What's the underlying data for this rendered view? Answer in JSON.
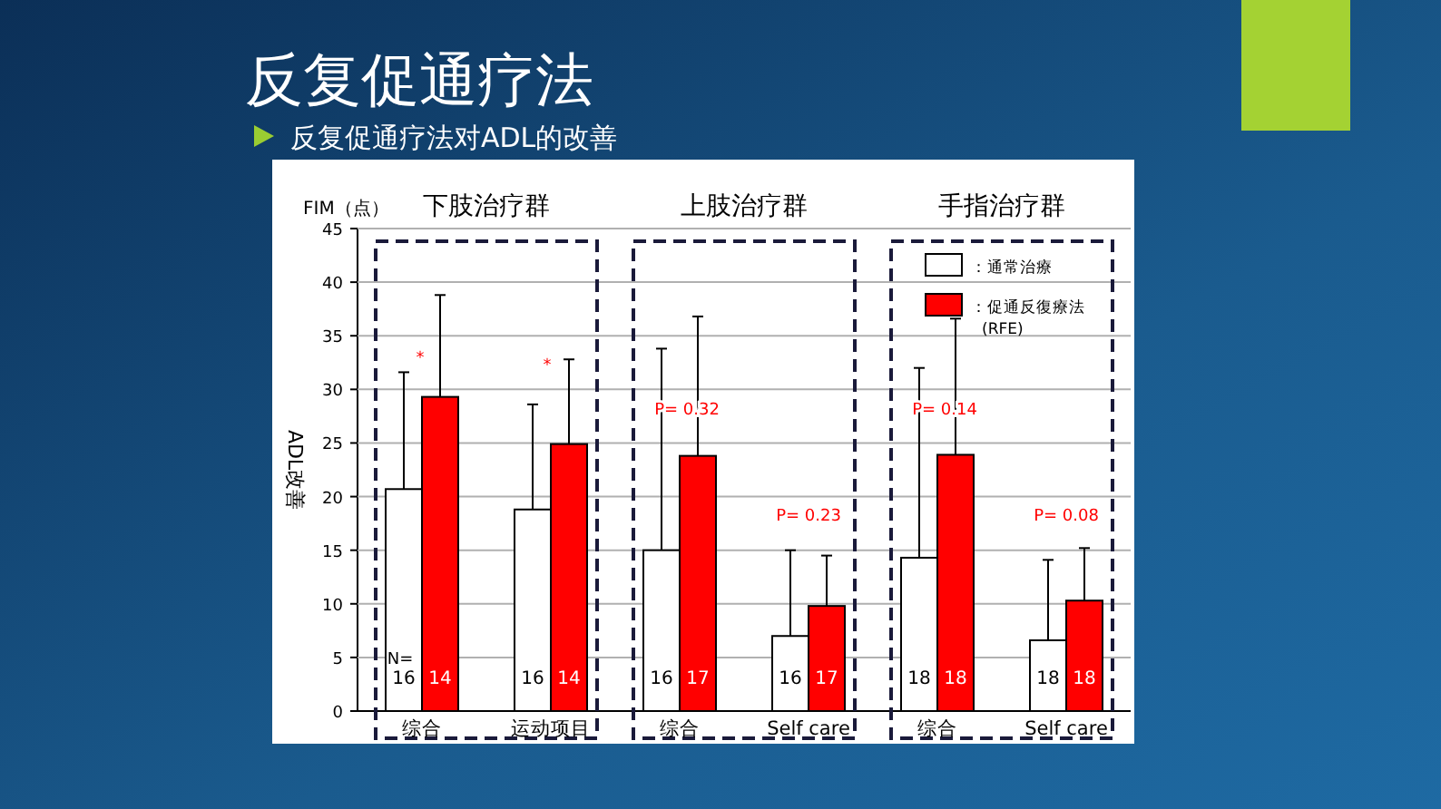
{
  "chart_data": {
    "type": "bar",
    "title": "反复促通疗法",
    "subtitle": "反复促通疗法对ADL的改善",
    "ylabel": "ADL改善",
    "categories": [
      "综合",
      "运动项目",
      "综合",
      "Self care",
      "综合",
      "Self care"
    ],
    "series": [
      {
        "name": "：通常治療",
        "color": "#ffffff",
        "values": [
          20.7,
          18.8,
          15.0,
          7.0,
          14.3,
          6.6
        ],
        "errors": [
          [
            20.7,
            31.6
          ],
          [
            18.8,
            28.6
          ],
          [
            15.0,
            33.8
          ],
          [
            7.0,
            15.0
          ],
          [
            14.3,
            32.0
          ],
          [
            6.6,
            14.1
          ]
        ]
      },
      {
        "name": "：促通反復療法\n(RFE)",
        "color": "#ff0000",
        "values": [
          29.3,
          24.9,
          23.8,
          9.8,
          23.9,
          10.3
        ],
        "errors": [
          [
            29.3,
            38.8
          ],
          [
            24.9,
            32.8
          ],
          [
            23.8,
            36.8
          ],
          [
            9.8,
            14.5
          ],
          [
            23.9,
            36.6
          ],
          [
            10.3,
            15.2
          ]
        ]
      }
    ],
    "ylim": [
      0,
      45
    ],
    "yticks": [
      0,
      5,
      10,
      15,
      20,
      25,
      30,
      35,
      40,
      45
    ],
    "grid": "y",
    "legend": "top right",
    "annotations": [
      "FIM（点）",
      "下肢治疗群",
      "上肢治疗群",
      "手指治疗群",
      "*",
      "*",
      "P= 0.32",
      "P= 0.23",
      "P= 0.14",
      "P= 0.08",
      "N=",
      "16",
      "14",
      "16",
      "14",
      "16",
      "17",
      "16",
      "17",
      "18",
      "18",
      "18",
      "18"
    ]
  }
}
